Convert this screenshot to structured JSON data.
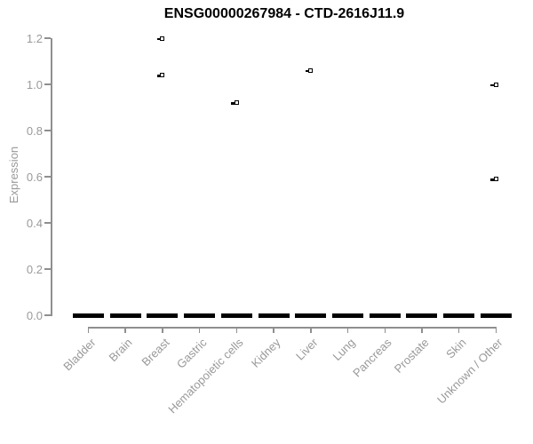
{
  "colors": {
    "background": "#ffffff",
    "axis_line": "#8f8f8f",
    "axis_text": "#999999",
    "title_text": "#000000",
    "box_fill": "#000000",
    "outlier_stroke": "#000000"
  },
  "chart_data": {
    "type": "boxplot",
    "title": "ENSG00000267984 - CTD-2616J11.9",
    "xlabel": "",
    "ylabel": "Expression",
    "ylim": [
      0.0,
      1.2
    ],
    "grid": false,
    "legend": "none",
    "yticks": [
      "0.0",
      "0.2",
      "0.4",
      "0.6",
      "0.8",
      "1.0",
      "1.2"
    ],
    "categories": [
      "Bladder",
      "Brain",
      "Breast",
      "Gastric",
      "Hematopoietic cells",
      "Kidney",
      "Liver",
      "Lung",
      "Pancreas",
      "Prostate",
      "Skin",
      "Unknown / Other"
    ],
    "boxes": [
      {
        "category": "Bladder",
        "whisker_low": 0,
        "q1": 0,
        "median": 0,
        "q3": 0,
        "whisker_high": 0,
        "outliers": []
      },
      {
        "category": "Brain",
        "whisker_low": 0,
        "q1": 0,
        "median": 0,
        "q3": 0,
        "whisker_high": 0,
        "outliers": []
      },
      {
        "category": "Breast",
        "whisker_low": 0,
        "q1": 0,
        "median": 0,
        "q3": 0,
        "whisker_high": 0,
        "outliers": [
          1.2,
          1.04
        ]
      },
      {
        "category": "Gastric",
        "whisker_low": 0,
        "q1": 0,
        "median": 0,
        "q3": 0,
        "whisker_high": 0,
        "outliers": []
      },
      {
        "category": "Hematopoietic cells",
        "whisker_low": 0,
        "q1": 0,
        "median": 0,
        "q3": 0,
        "whisker_high": 0,
        "outliers": [
          0.92
        ]
      },
      {
        "category": "Kidney",
        "whisker_low": 0,
        "q1": 0,
        "median": 0,
        "q3": 0,
        "whisker_high": 0,
        "outliers": []
      },
      {
        "category": "Liver",
        "whisker_low": 0,
        "q1": 0,
        "median": 0,
        "q3": 0,
        "whisker_high": 0,
        "outliers": [
          1.06
        ]
      },
      {
        "category": "Lung",
        "whisker_low": 0,
        "q1": 0,
        "median": 0,
        "q3": 0,
        "whisker_high": 0,
        "outliers": []
      },
      {
        "category": "Pancreas",
        "whisker_low": 0,
        "q1": 0,
        "median": 0,
        "q3": 0,
        "whisker_high": 0,
        "outliers": []
      },
      {
        "category": "Prostate",
        "whisker_low": 0,
        "q1": 0,
        "median": 0,
        "q3": 0,
        "whisker_high": 0,
        "outliers": []
      },
      {
        "category": "Skin",
        "whisker_low": 0,
        "q1": 0,
        "median": 0,
        "q3": 0,
        "whisker_high": 0,
        "outliers": []
      },
      {
        "category": "Unknown / Other",
        "whisker_low": 0,
        "q1": 0,
        "median": 0,
        "q3": 0,
        "whisker_high": 0,
        "outliers": [
          1.0,
          0.59
        ]
      }
    ]
  }
}
